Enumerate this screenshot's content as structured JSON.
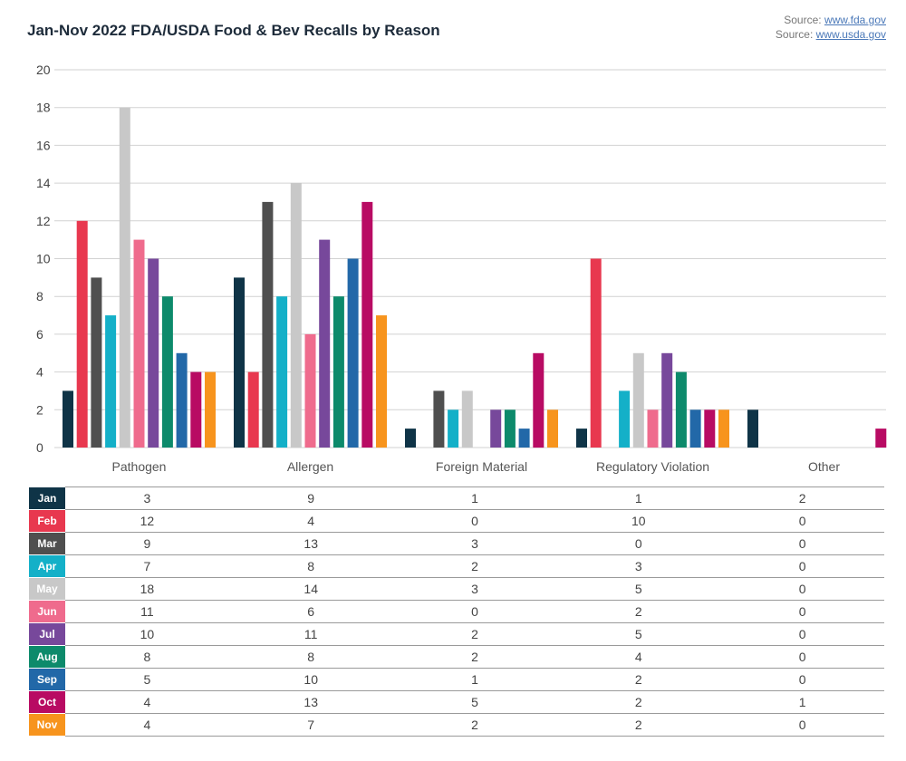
{
  "title": "Jan-Nov 2022 FDA/USDA Food & Bev Recalls by Reason",
  "sources": [
    {
      "prefix": "Source: ",
      "link": "www.fda.gov"
    },
    {
      "prefix": "Source: ",
      "link": "www.usda.gov"
    }
  ],
  "chart_data": {
    "type": "bar",
    "title": "Jan-Nov 2022 FDA/USDA Food & Bev Recalls by Reason",
    "xlabel": "",
    "ylabel": "",
    "ylim": [
      0,
      20
    ],
    "yticks": [
      0,
      2,
      4,
      6,
      8,
      10,
      12,
      14,
      16,
      18,
      20
    ],
    "grid": true,
    "legend": "table-below",
    "categories": [
      "Pathogen",
      "Allergen",
      "Foreign Material",
      "Regulatory Violation",
      "Other"
    ],
    "series": [
      {
        "name": "Jan",
        "color": "#0f3447",
        "values": [
          3,
          9,
          1,
          1,
          2
        ]
      },
      {
        "name": "Feb",
        "color": "#e8384f",
        "values": [
          12,
          4,
          0,
          10,
          0
        ]
      },
      {
        "name": "Mar",
        "color": "#4f4f4f",
        "values": [
          9,
          13,
          3,
          0,
          0
        ]
      },
      {
        "name": "Apr",
        "color": "#14b0c8",
        "values": [
          7,
          8,
          2,
          3,
          0
        ]
      },
      {
        "name": "May",
        "color": "#c8c8c8",
        "values": [
          18,
          14,
          3,
          5,
          0
        ]
      },
      {
        "name": "Jun",
        "color": "#ef6b8d",
        "values": [
          11,
          6,
          0,
          2,
          0
        ]
      },
      {
        "name": "Jul",
        "color": "#77489b",
        "values": [
          10,
          11,
          2,
          5,
          0
        ]
      },
      {
        "name": "Aug",
        "color": "#0d8a6b",
        "values": [
          8,
          8,
          2,
          4,
          0
        ]
      },
      {
        "name": "Sep",
        "color": "#2268a8",
        "values": [
          5,
          10,
          1,
          2,
          0
        ]
      },
      {
        "name": "Oct",
        "color": "#b80b63",
        "values": [
          4,
          13,
          5,
          2,
          1
        ]
      },
      {
        "name": "Nov",
        "color": "#f7941d",
        "values": [
          4,
          7,
          2,
          2,
          0
        ]
      }
    ]
  }
}
